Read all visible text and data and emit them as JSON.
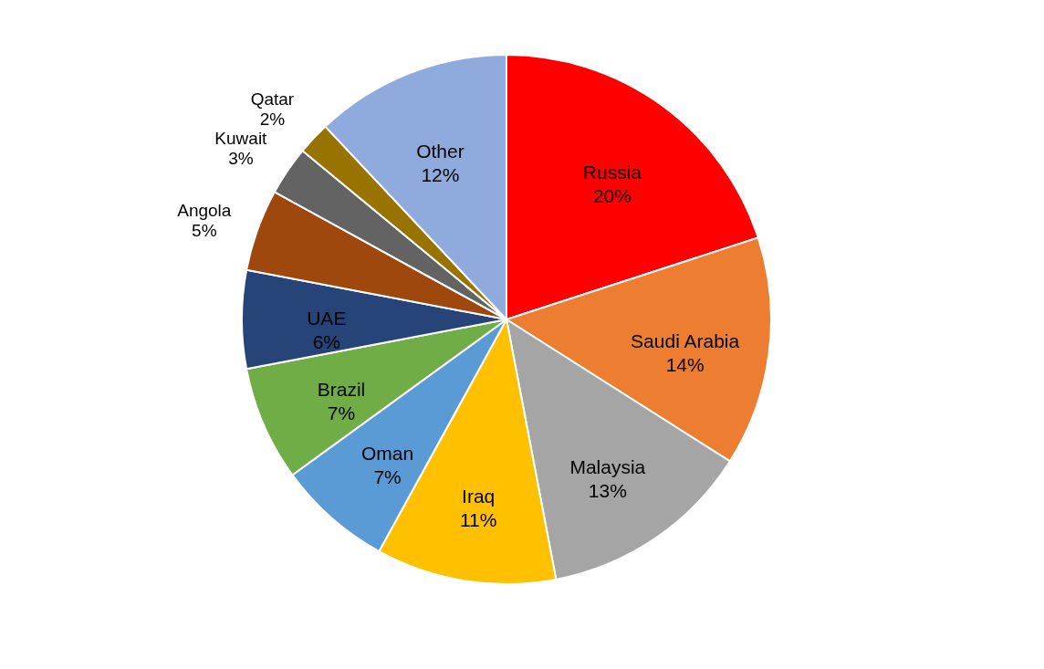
{
  "chart_data": {
    "type": "pie",
    "categories": [
      "Russia",
      "Saudi Arabia",
      "Malaysia",
      "Iraq",
      "Oman",
      "Brazil",
      "UAE",
      "Angola",
      "Kuwait",
      "Qatar",
      "Other"
    ],
    "values": [
      20,
      14,
      13,
      11,
      7,
      7,
      6,
      5,
      3,
      2,
      12
    ],
    "value_labels": [
      "20%",
      "14%",
      "13%",
      "11%",
      "7%",
      "7%",
      "6%",
      "5%",
      "3%",
      "2%",
      "12%"
    ],
    "colors": [
      "#ff0000",
      "#ed7d31",
      "#a5a5a5",
      "#ffc000",
      "#5b9bd5",
      "#70ad47",
      "#264478",
      "#9e480e",
      "#636363",
      "#997300",
      "#8faadc"
    ],
    "legend": false
  }
}
